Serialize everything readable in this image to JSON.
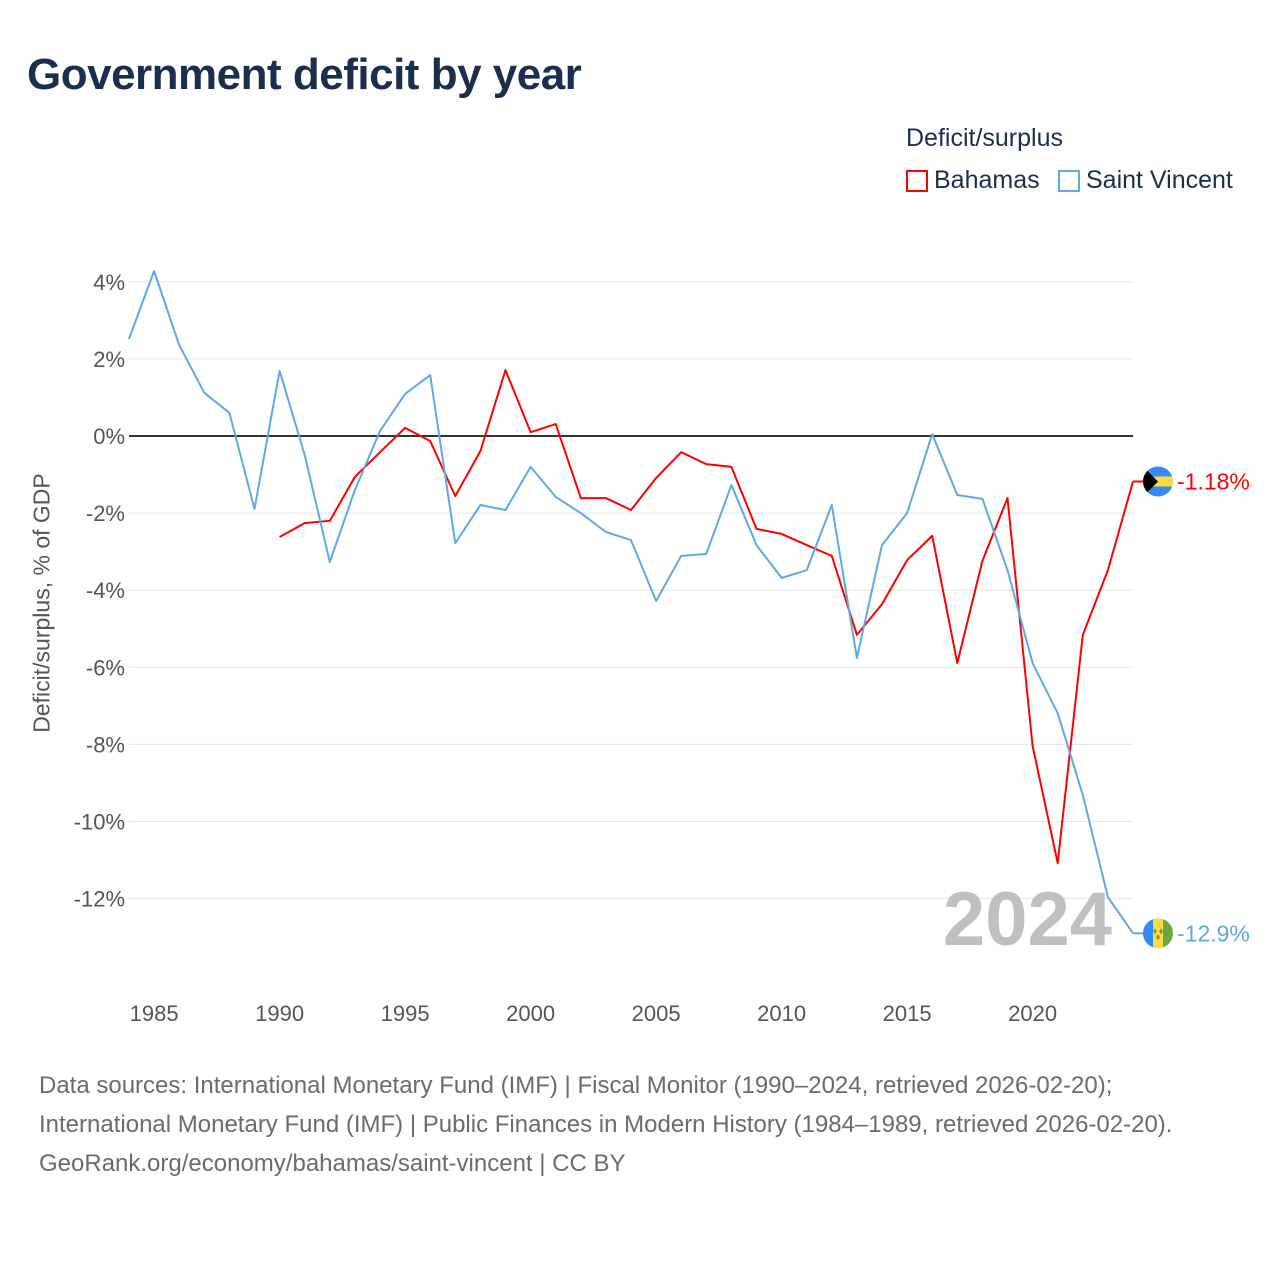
{
  "title": "Government deficit by year",
  "legend": {
    "title": "Deficit/surplus",
    "items": [
      {
        "label": "Bahamas",
        "color": "#ff0000"
      },
      {
        "label": "Saint Vincent",
        "color": "#5ea8ec"
      }
    ]
  },
  "watermark_year": "2024",
  "footer": {
    "sources": "Data sources: International Monetary Fund (IMF) | Fiscal Monitor (1990–2024, retrieved 2026-02-20); International Monetary Fund (IMF) | Public Finances in Modern History (1984–1989, retrieved 2026-02-20).",
    "credit": "GeoRank.org/economy/bahamas/saint-vincent | CC BY"
  },
  "chart_data": {
    "type": "line",
    "title": "Government deficit by year",
    "xlabel": "",
    "ylabel": "Deficit/surplus, % of GDP",
    "xlim": [
      1984,
      2024
    ],
    "ylim": [
      -13.5,
      4.5
    ],
    "x_ticks": [
      1985,
      1990,
      1995,
      2000,
      2005,
      2010,
      2015,
      2020
    ],
    "y_ticks": [
      4,
      2,
      0,
      -2,
      -4,
      -6,
      -8,
      -10,
      -12
    ],
    "y_tick_labels": [
      "4%",
      "2%",
      "0%",
      "-2%",
      "-4%",
      "-6%",
      "-8%",
      "-10%",
      "-12%"
    ],
    "grid": true,
    "legend_position": "top-right",
    "series": [
      {
        "name": "Bahamas",
        "color": "#ff0000",
        "end_label": "-1.18%",
        "x": [
          1990,
          1991,
          1992,
          1993,
          1994,
          1995,
          1996,
          1997,
          1998,
          1999,
          2000,
          2001,
          2002,
          2003,
          2004,
          2005,
          2006,
          2007,
          2008,
          2009,
          2010,
          2011,
          2012,
          2013,
          2014,
          2015,
          2016,
          2017,
          2018,
          2019,
          2020,
          2021,
          2022,
          2023,
          2024
        ],
        "values": [
          -2.62,
          -2.26,
          -2.2,
          -1.06,
          -0.42,
          0.21,
          -0.13,
          -1.56,
          -0.39,
          1.71,
          0.1,
          0.31,
          -1.61,
          -1.61,
          -1.92,
          -1.09,
          -0.42,
          -0.73,
          -0.8,
          -2.41,
          -2.54,
          -2.83,
          -3.11,
          -5.16,
          -4.36,
          -3.22,
          -2.59,
          -5.89,
          -3.24,
          -1.61,
          -8.04,
          -11.08,
          -5.16,
          -3.48,
          -1.18
        ]
      },
      {
        "name": "Saint Vincent",
        "color": "#5ea8ec",
        "end_label": "-12.9%",
        "x": [
          1984,
          1985,
          1986,
          1987,
          1988,
          1989,
          1990,
          1991,
          1992,
          1993,
          1994,
          1995,
          1996,
          1997,
          1998,
          1999,
          2000,
          2001,
          2002,
          2003,
          2004,
          2005,
          2006,
          2007,
          2008,
          2009,
          2010,
          2011,
          2012,
          2013,
          2014,
          2015,
          2016,
          2017,
          2018,
          2019,
          2020,
          2021,
          2022,
          2023,
          2024
        ],
        "values": [
          2.52,
          4.28,
          2.36,
          1.12,
          0.6,
          -1.89,
          1.69,
          -0.49,
          -3.27,
          -1.4,
          0.13,
          1.09,
          1.58,
          -2.78,
          -1.79,
          -1.92,
          -0.8,
          -1.58,
          -2.0,
          -2.49,
          -2.7,
          -4.28,
          -3.11,
          -3.06,
          -1.27,
          -2.83,
          -3.68,
          -3.48,
          -1.79,
          -5.76,
          -2.83,
          -2.0,
          0.05,
          -1.53,
          -1.63,
          -3.48,
          -5.89,
          -7.19,
          -9.31,
          -11.96,
          -12.9
        ]
      }
    ]
  }
}
